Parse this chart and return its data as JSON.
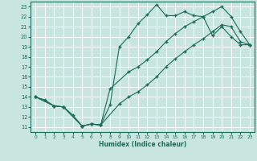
{
  "xlabel": "Humidex (Indice chaleur)",
  "bg_color": "#c8e6df",
  "grid_color": "#ffffff",
  "line_color": "#1a6b5a",
  "xlim": [
    -0.5,
    23.5
  ],
  "ylim": [
    10.5,
    23.5
  ],
  "xticks": [
    0,
    1,
    2,
    3,
    4,
    5,
    6,
    7,
    8,
    9,
    10,
    11,
    12,
    13,
    14,
    15,
    16,
    17,
    18,
    19,
    20,
    21,
    22,
    23
  ],
  "yticks": [
    11,
    12,
    13,
    14,
    15,
    16,
    17,
    18,
    19,
    20,
    21,
    22,
    23
  ],
  "line1_x": [
    0,
    1,
    2,
    3,
    4,
    5,
    6,
    7,
    8,
    9,
    10,
    11,
    12,
    13,
    14,
    15,
    16,
    17,
    18,
    19,
    20,
    21,
    22,
    23
  ],
  "line1_y": [
    14,
    13.7,
    13.1,
    13.0,
    12.2,
    11.1,
    11.3,
    11.2,
    13.2,
    19.0,
    20.0,
    21.3,
    22.2,
    23.2,
    22.1,
    22.1,
    22.5,
    22.1,
    22.0,
    20.1,
    21.0,
    20.0,
    19.2,
    19.2
  ],
  "line2_x": [
    0,
    2,
    3,
    5,
    6,
    7,
    8,
    10,
    11,
    12,
    13,
    14,
    15,
    16,
    17,
    18,
    19,
    20,
    21,
    22,
    23
  ],
  "line2_y": [
    14,
    13.1,
    13.0,
    11.1,
    11.3,
    11.2,
    14.8,
    16.5,
    17.0,
    17.7,
    18.5,
    19.5,
    20.3,
    21.0,
    21.5,
    22.0,
    22.5,
    23.0,
    22.0,
    20.5,
    19.2
  ],
  "line3_x": [
    0,
    2,
    3,
    5,
    6,
    7,
    9,
    10,
    11,
    12,
    13,
    14,
    15,
    16,
    17,
    18,
    19,
    20,
    21,
    22,
    23
  ],
  "line3_y": [
    14,
    13.1,
    13.0,
    11.1,
    11.3,
    11.2,
    13.3,
    14.0,
    14.5,
    15.2,
    16.0,
    17.0,
    17.8,
    18.5,
    19.2,
    19.8,
    20.5,
    21.2,
    21.0,
    19.5,
    19.2
  ]
}
